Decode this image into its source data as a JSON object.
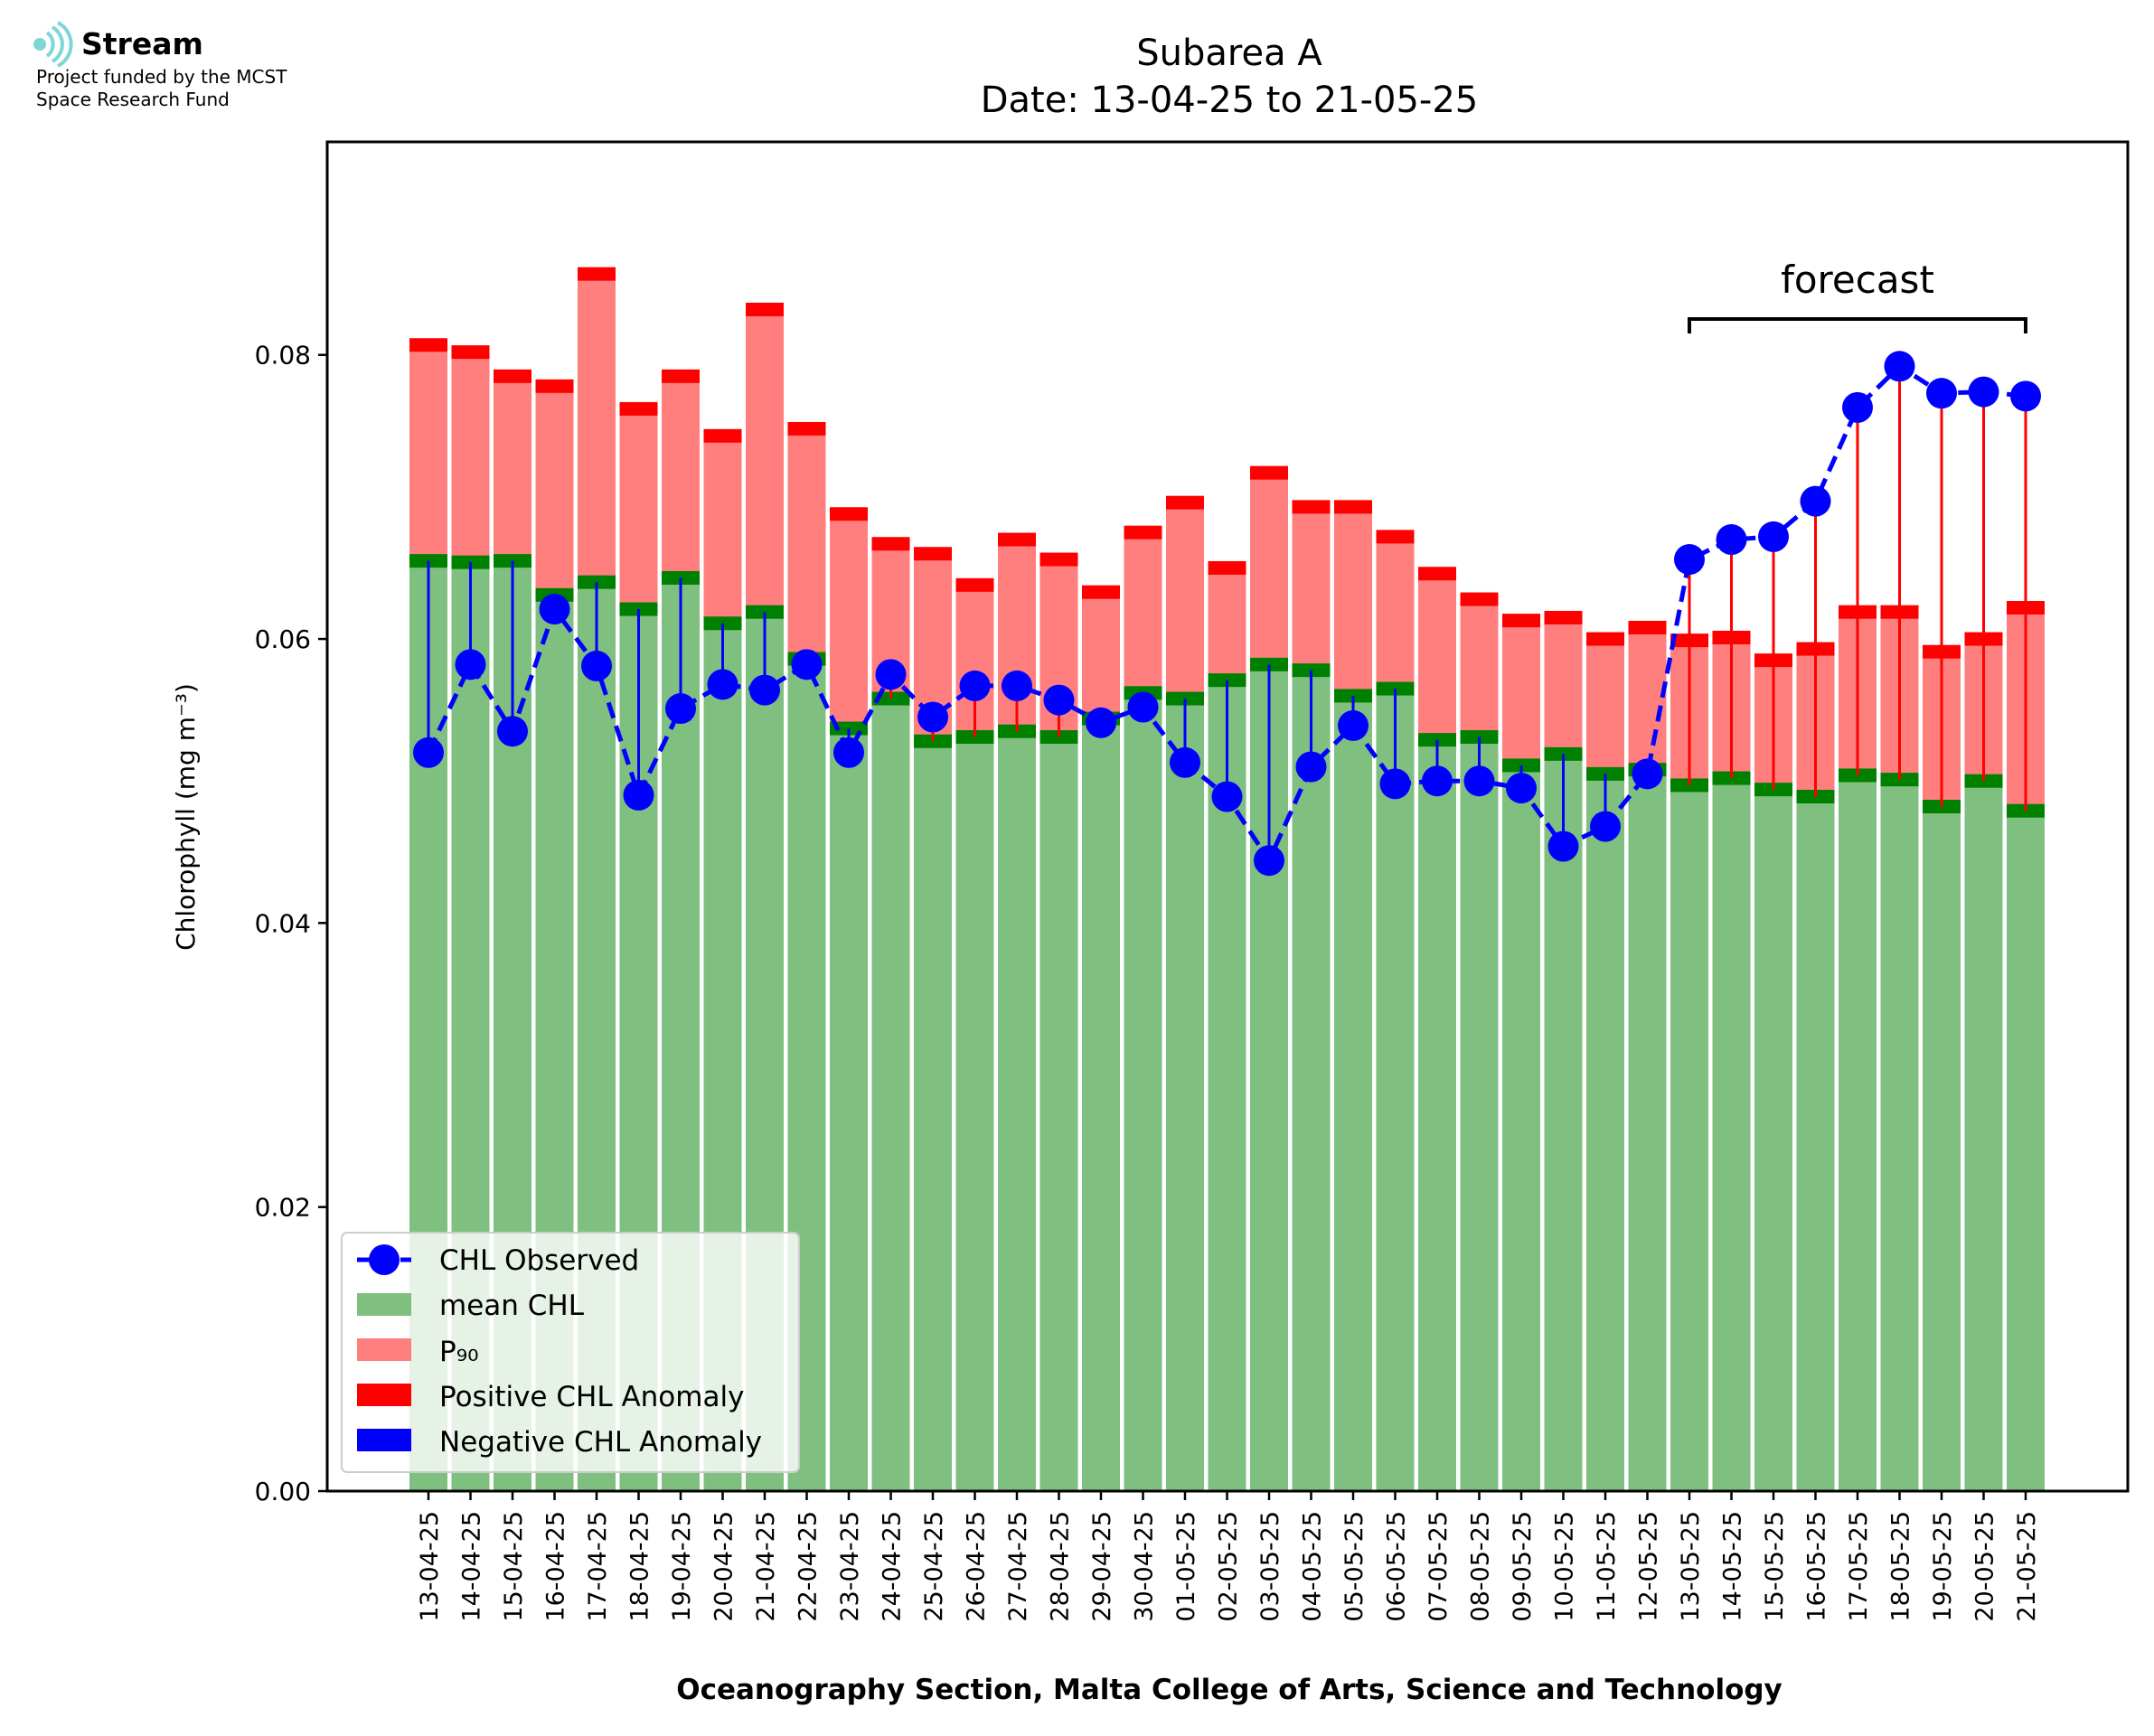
{
  "logo": {
    "name": "Stream",
    "line1": "Project funded by the MCST",
    "line2": "Space Research Fund"
  },
  "colors": {
    "observed": "#0000ff",
    "mean": "#7fbf7f",
    "mean_band": "#008000",
    "p90": "#ff7f7f",
    "p90_band": "#ff0000",
    "positive_anomaly": "#ff0000",
    "negative_anomaly": "#0000ff"
  },
  "chart_data": {
    "type": "bar",
    "title": "Subarea A",
    "subtitle": "Date: 13-04-25 to 21-05-25",
    "xlabel": "Oceanography Section, Malta College of Arts, Science and Technology",
    "ylabel": "Chlorophyll (mg m⁻³)",
    "ylim": [
      0,
      0.095
    ],
    "yticks": [
      "0.00",
      "0.02",
      "0.04",
      "0.06",
      "0.08"
    ],
    "grid": false,
    "legend_position": "lower left",
    "forecast_label": "forecast",
    "forecast_range": [
      "13-05-25",
      "21-05-25"
    ],
    "categories": [
      "13-04-25",
      "14-04-25",
      "15-04-25",
      "16-04-25",
      "17-04-25",
      "18-04-25",
      "19-04-25",
      "20-04-25",
      "21-04-25",
      "22-04-25",
      "23-04-25",
      "24-04-25",
      "25-04-25",
      "26-04-25",
      "27-04-25",
      "28-04-25",
      "29-04-25",
      "30-04-25",
      "01-05-25",
      "02-05-25",
      "03-05-25",
      "04-05-25",
      "05-05-25",
      "06-05-25",
      "07-05-25",
      "08-05-25",
      "09-05-25",
      "10-05-25",
      "11-05-25",
      "12-05-25",
      "13-05-25",
      "14-05-25",
      "15-05-25",
      "16-05-25",
      "17-05-25",
      "18-05-25",
      "19-05-25",
      "20-05-25",
      "21-05-25"
    ],
    "series": [
      {
        "name": "CHL Observed",
        "kind": "line",
        "values": [
          0.052,
          0.0582,
          0.0535,
          0.0621,
          0.0581,
          0.049,
          0.0551,
          0.0568,
          0.0564,
          0.0582,
          0.052,
          0.0575,
          0.0545,
          0.0567,
          0.0567,
          0.0557,
          0.0541,
          0.0552,
          0.0513,
          0.0489,
          0.0444,
          0.051,
          0.0539,
          0.0498,
          0.05,
          0.05,
          0.0495,
          0.0454,
          0.0468,
          0.0505,
          0.0656,
          0.067,
          0.0672,
          0.0697,
          0.0763,
          0.0792,
          0.0773,
          0.0774,
          0.0771
        ]
      },
      {
        "name": "mean CHL",
        "kind": "bar",
        "values": [
          0.0655,
          0.0654,
          0.0655,
          0.0631,
          0.064,
          0.0621,
          0.0643,
          0.0611,
          0.0619,
          0.0586,
          0.0537,
          0.0558,
          0.0528,
          0.0531,
          0.0535,
          0.0531,
          0.0544,
          0.0562,
          0.0558,
          0.0571,
          0.0582,
          0.0578,
          0.056,
          0.0565,
          0.0529,
          0.0531,
          0.0511,
          0.0519,
          0.0505,
          0.0508,
          0.0497,
          0.0502,
          0.0494,
          0.0489,
          0.0504,
          0.0501,
          0.0482,
          0.05,
          0.0479
        ]
      },
      {
        "name": "P₉₀",
        "kind": "bar",
        "values": [
          0.0807,
          0.0802,
          0.0785,
          0.0778,
          0.0857,
          0.0762,
          0.0785,
          0.0743,
          0.0832,
          0.0748,
          0.0688,
          0.0667,
          0.066,
          0.0638,
          0.067,
          0.0656,
          0.0633,
          0.0675,
          0.0696,
          0.065,
          0.0717,
          0.0693,
          0.0693,
          0.0672,
          0.0646,
          0.0628,
          0.0613,
          0.0615,
          0.06,
          0.0608,
          0.0599,
          0.0601,
          0.0585,
          0.0593,
          0.0619,
          0.0619,
          0.0591,
          0.06,
          0.0622
        ]
      },
      {
        "name": "Positive CHL Anomaly",
        "kind": "marker"
      },
      {
        "name": "Negative CHL Anomaly",
        "kind": "marker"
      }
    ]
  }
}
